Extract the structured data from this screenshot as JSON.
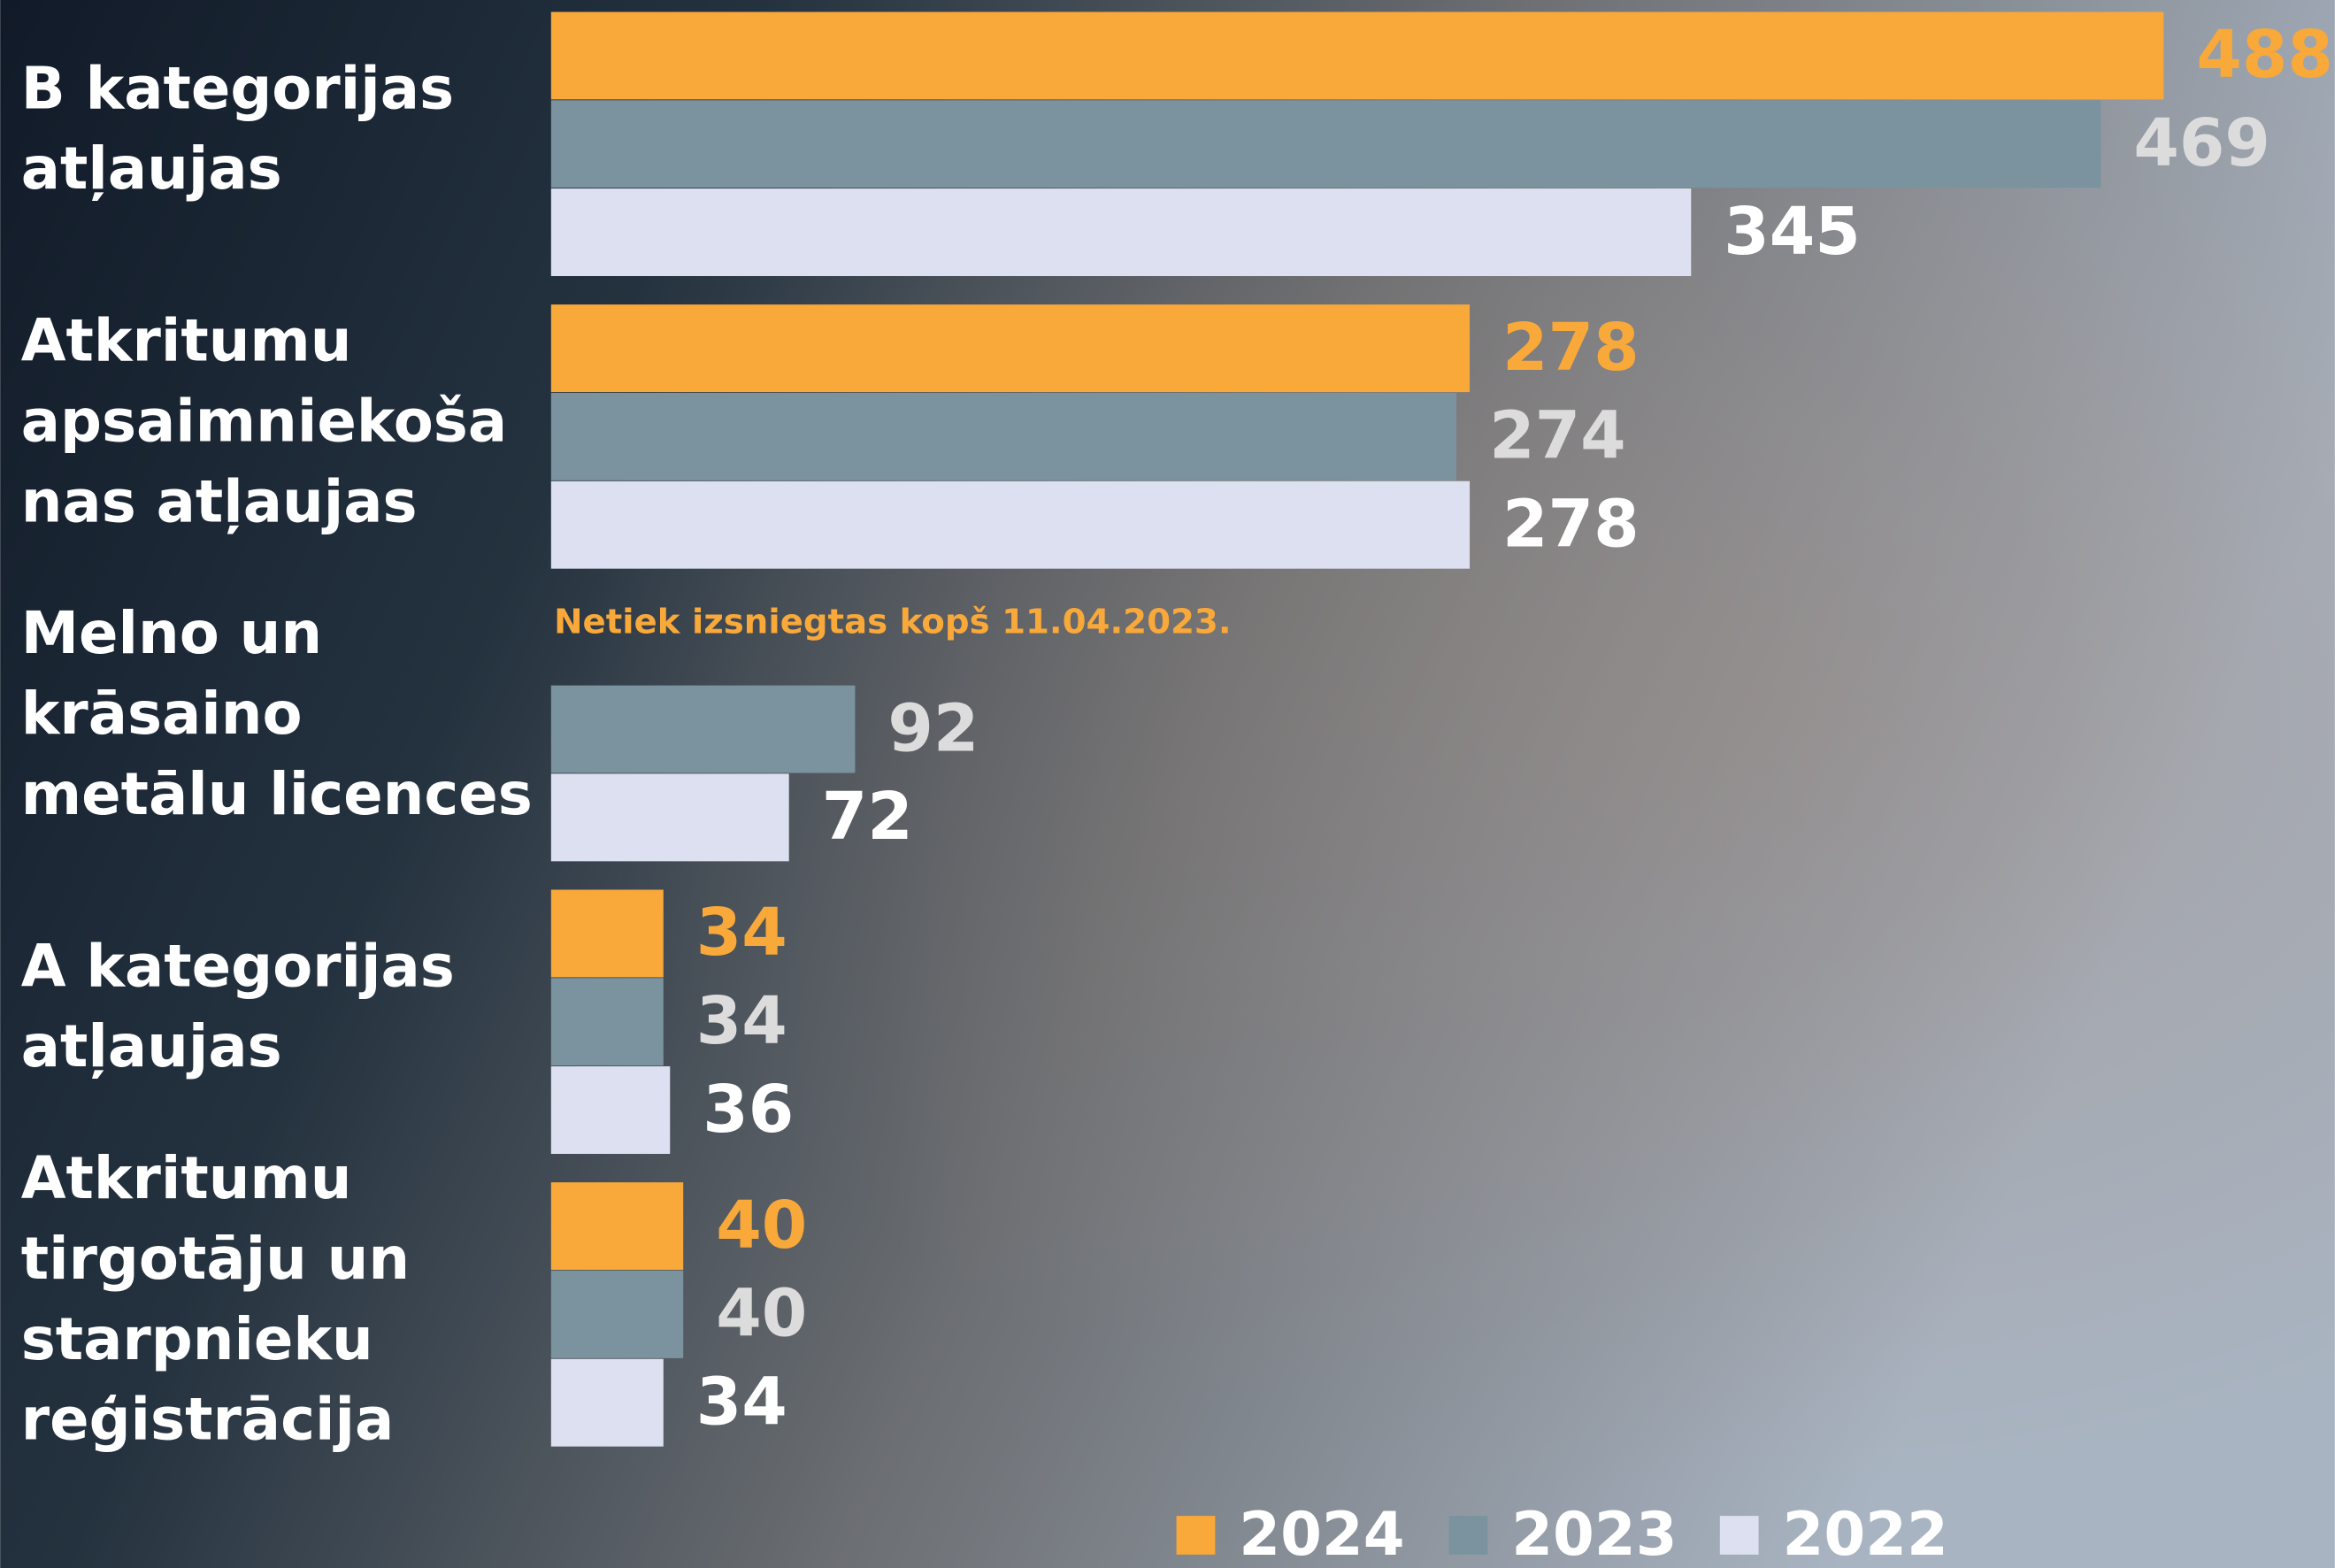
{
  "chart_data": {
    "type": "bar",
    "orientation": "horizontal",
    "categories": [
      [
        "B kategorijas",
        "atļaujas"
      ],
      [
        "Atkritumu",
        "apsaimniekoša",
        "nas atļaujas"
      ],
      [
        "Melno un",
        "krāsaino",
        "metālu licences"
      ],
      [
        "A kategorijas",
        "atļaujas"
      ],
      [
        "Atkritumu",
        "tirgotāju un",
        "starpnieku",
        "reģistrācija"
      ]
    ],
    "series": [
      {
        "name": "2024",
        "color": "#f9a83a",
        "label_color": "#f9a83a",
        "values": [
          488,
          278,
          null,
          34,
          40
        ]
      },
      {
        "name": "2023",
        "color": "#7a939e",
        "label_color": "#dcdcdc",
        "values": [
          469,
          274,
          92,
          34,
          40
        ]
      },
      {
        "name": "2022",
        "color": "#dde0f0",
        "label_color": "#ffffff",
        "values": [
          345,
          278,
          72,
          36,
          34
        ]
      }
    ],
    "annotations": [
      {
        "text": "Netiek izsniegtas kopš 11.04.2023.",
        "category": 2,
        "series": 0
      }
    ],
    "legend": "bottom"
  }
}
